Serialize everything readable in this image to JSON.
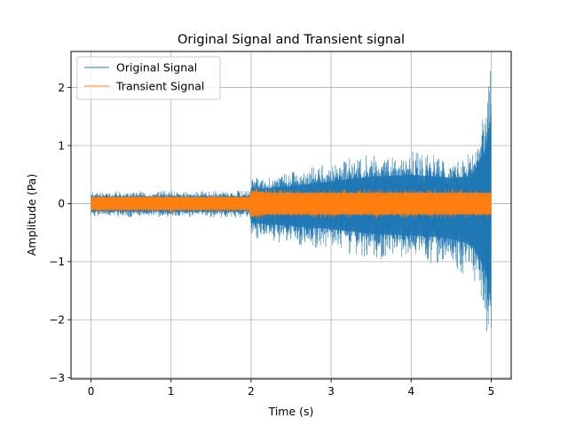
{
  "chart_data": {
    "type": "line",
    "title": "Original Signal and Transient signal",
    "xlabel": "Time (s)",
    "ylabel": "Amplitude (Pa)",
    "xlim": [
      -0.25,
      5.25
    ],
    "ylim": [
      -3.02,
      2.62
    ],
    "x_ticks": [
      0,
      1,
      2,
      3,
      4,
      5
    ],
    "x_tick_labels": [
      "0",
      "1",
      "2",
      "3",
      "4",
      "5"
    ],
    "y_ticks": [
      -3,
      -2,
      -1,
      0,
      1,
      2
    ],
    "y_tick_labels": [
      "−3",
      "−2",
      "−1",
      "0",
      "1",
      "2"
    ],
    "grid": true,
    "legend_position": "top-left",
    "series": [
      {
        "name": "Original Signal",
        "color": "#1f77b4",
        "envelope_time": [
          0,
          0.5,
          1.0,
          1.5,
          1.99,
          2.0,
          2.5,
          3.0,
          3.5,
          4.0,
          4.3,
          4.5,
          4.7,
          4.8,
          4.9,
          5.0
        ],
        "envelope_upper": [
          0.22,
          0.22,
          0.22,
          0.22,
          0.22,
          0.45,
          0.55,
          0.7,
          0.85,
          0.9,
          0.85,
          0.8,
          0.85,
          1.05,
          1.5,
          2.55
        ],
        "envelope_lower": [
          -0.24,
          -0.24,
          -0.24,
          -0.24,
          -0.24,
          -0.6,
          -0.7,
          -0.8,
          -0.95,
          -1.0,
          -1.05,
          -1.1,
          -1.25,
          -1.45,
          -1.95,
          -2.9
        ]
      },
      {
        "name": "Transient Signal",
        "color": "#ff7f0e",
        "envelope_time": [
          0,
          1.99,
          2.0,
          2.2,
          5.0
        ],
        "envelope_upper": [
          0.15,
          0.15,
          0.3,
          0.25,
          0.25
        ],
        "envelope_lower": [
          -0.15,
          -0.15,
          -0.3,
          -0.25,
          -0.25
        ]
      }
    ]
  }
}
